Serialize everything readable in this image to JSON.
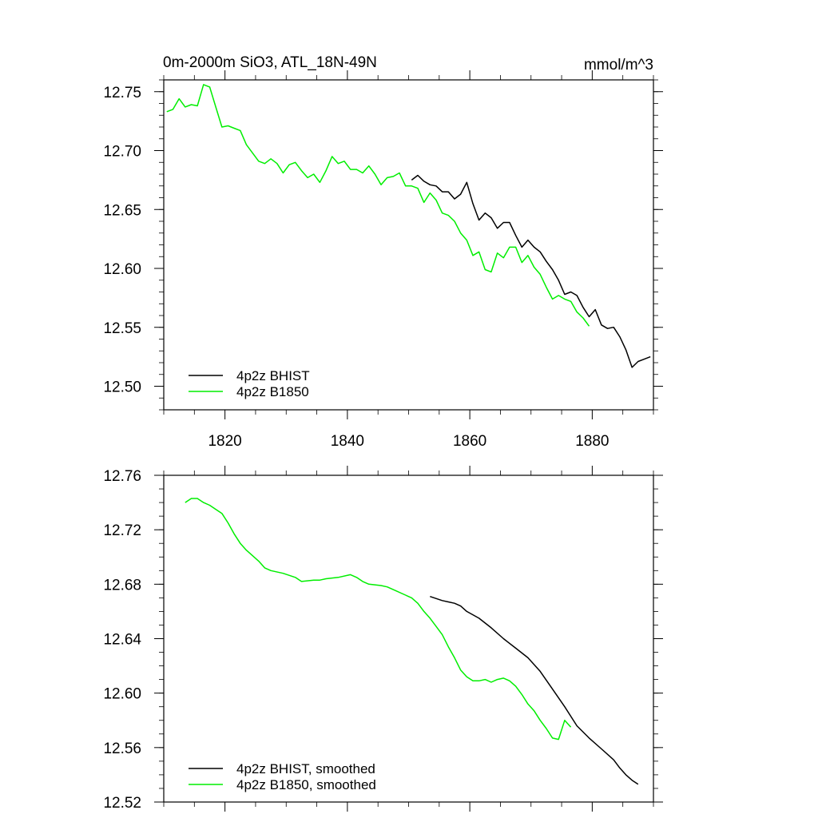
{
  "colors": {
    "bhist": "#000000",
    "b1850": "#00ee00",
    "axis": "#000000",
    "background": "#ffffff"
  },
  "chart_data": [
    {
      "type": "line",
      "title": "0m-2000m SiO3, ATL_18N-49N",
      "units": "mmol/m^3",
      "xlim": [
        1810,
        1890
      ],
      "ylim": [
        12.48,
        12.76
      ],
      "xticks": [
        "1820",
        "1840",
        "1860",
        "1880"
      ],
      "yticks": [
        "12.50",
        "12.55",
        "12.60",
        "12.65",
        "12.70",
        "12.75"
      ],
      "legend_placement": "bottom-left",
      "series": [
        {
          "name": "4p2z BHIST",
          "color": "#000000",
          "x": [
            1850.5,
            1851.5,
            1852.5,
            1853.5,
            1854.5,
            1855.5,
            1856.5,
            1857.5,
            1858.5,
            1859.5,
            1860.5,
            1861.5,
            1862.5,
            1863.5,
            1864.5,
            1865.5,
            1866.5,
            1867.5,
            1868.5,
            1869.5,
            1870.5,
            1871.5,
            1872.5,
            1873.5,
            1874.5,
            1875.5,
            1876.5,
            1877.5,
            1878.5,
            1879.5,
            1880.5,
            1881.5,
            1882.5,
            1883.5,
            1884.5,
            1885.5,
            1886.5,
            1887.5,
            1888.5,
            1889.5
          ],
          "y": [
            12.675,
            12.679,
            12.674,
            12.671,
            12.67,
            12.665,
            12.665,
            12.659,
            12.663,
            12.673,
            12.655,
            12.641,
            12.647,
            12.643,
            12.634,
            12.639,
            12.639,
            12.628,
            12.618,
            12.624,
            12.618,
            12.614,
            12.606,
            12.599,
            12.59,
            12.578,
            12.58,
            12.577,
            12.567,
            12.559,
            12.565,
            12.552,
            12.549,
            12.55,
            12.542,
            12.531,
            12.516,
            12.521,
            12.523,
            12.525
          ]
        },
        {
          "name": "4p2z B1850",
          "color": "#00ee00",
          "x": [
            1810.5,
            1811.5,
            1812.5,
            1813.5,
            1814.5,
            1815.5,
            1816.5,
            1817.5,
            1818.5,
            1819.5,
            1820.5,
            1821.5,
            1822.5,
            1823.5,
            1824.5,
            1825.5,
            1826.5,
            1827.5,
            1828.5,
            1829.5,
            1830.5,
            1831.5,
            1832.5,
            1833.5,
            1834.5,
            1835.5,
            1836.5,
            1837.5,
            1838.5,
            1839.5,
            1840.5,
            1841.5,
            1842.5,
            1843.5,
            1844.5,
            1845.5,
            1846.5,
            1847.5,
            1848.5,
            1849.5,
            1850.5,
            1851.5,
            1852.5,
            1853.5,
            1854.5,
            1855.5,
            1856.5,
            1857.5,
            1858.5,
            1859.5,
            1860.5,
            1861.5,
            1862.5,
            1863.5,
            1864.5,
            1865.5,
            1866.5,
            1867.5,
            1868.5,
            1869.5,
            1870.5,
            1871.5,
            1872.5,
            1873.5,
            1874.5,
            1875.5,
            1876.5,
            1877.5,
            1878.5,
            1879.5
          ],
          "y": [
            12.733,
            12.735,
            12.744,
            12.737,
            12.739,
            12.738,
            12.756,
            12.754,
            12.737,
            12.72,
            12.721,
            12.719,
            12.717,
            12.705,
            12.698,
            12.691,
            12.689,
            12.693,
            12.689,
            12.681,
            12.688,
            12.69,
            12.683,
            12.677,
            12.68,
            12.673,
            12.683,
            12.695,
            12.689,
            12.691,
            12.684,
            12.684,
            12.681,
            12.687,
            12.68,
            12.671,
            12.677,
            12.678,
            12.681,
            12.67,
            12.67,
            12.668,
            12.656,
            12.664,
            12.658,
            12.647,
            12.645,
            12.64,
            12.63,
            12.624,
            12.611,
            12.614,
            12.599,
            12.597,
            12.613,
            12.609,
            12.618,
            12.618,
            12.605,
            12.611,
            12.601,
            12.595,
            12.584,
            12.574,
            12.577,
            12.574,
            12.572,
            12.563,
            12.558,
            12.551
          ]
        }
      ]
    },
    {
      "type": "line",
      "title": "",
      "xlim": [
        1810,
        1890
      ],
      "ylim": [
        12.52,
        12.76
      ],
      "yticks": [
        "12.52",
        "12.56",
        "12.60",
        "12.64",
        "12.68",
        "12.72",
        "12.76"
      ],
      "legend_placement": "bottom-left",
      "series": [
        {
          "name": "4p2z BHIST, smoothed",
          "color": "#000000",
          "x": [
            1853.5,
            1855.5,
            1856.5,
            1857.5,
            1858.5,
            1859.5,
            1861.5,
            1863.5,
            1865.5,
            1867.5,
            1869.5,
            1871.5,
            1873.5,
            1875.5,
            1877.5,
            1879.5,
            1881.5,
            1883.5,
            1884.5,
            1885.5,
            1886.5,
            1887.5
          ],
          "y": [
            12.671,
            12.668,
            12.667,
            12.666,
            12.664,
            12.66,
            12.655,
            12.648,
            12.64,
            12.633,
            12.626,
            12.616,
            12.603,
            12.59,
            12.576,
            12.567,
            12.559,
            12.551,
            12.545,
            12.54,
            12.536,
            12.533
          ]
        },
        {
          "name": "4p2z B1850, smoothed",
          "color": "#00ee00",
          "x": [
            1813.5,
            1814.5,
            1815.5,
            1816.5,
            1817.5,
            1818.5,
            1819.5,
            1820.5,
            1821.5,
            1822.5,
            1823.5,
            1825.5,
            1826.5,
            1827.5,
            1829.5,
            1831.5,
            1832.5,
            1834.5,
            1835.5,
            1836.5,
            1838.5,
            1840.5,
            1841.5,
            1842.5,
            1843.5,
            1845.5,
            1846.5,
            1847.5,
            1849.5,
            1850.5,
            1851.5,
            1852.5,
            1853.5,
            1854.5,
            1855.5,
            1856.5,
            1857.5,
            1858.5,
            1859.5,
            1860.5,
            1861.5,
            1862.5,
            1863.5,
            1864.5,
            1865.5,
            1866.5,
            1867.5,
            1868.5,
            1869.5,
            1870.5,
            1871.5,
            1872.5,
            1873.5,
            1874.5,
            1875.5,
            1876.5
          ],
          "y": [
            12.74,
            12.743,
            12.743,
            12.74,
            12.738,
            12.735,
            12.732,
            12.725,
            12.717,
            12.71,
            12.705,
            12.697,
            12.692,
            12.69,
            12.688,
            12.685,
            12.682,
            12.683,
            12.683,
            12.684,
            12.685,
            12.687,
            12.685,
            12.682,
            12.68,
            12.679,
            12.678,
            12.676,
            12.672,
            12.67,
            12.666,
            12.66,
            12.655,
            12.649,
            12.643,
            12.634,
            12.626,
            12.617,
            12.612,
            12.609,
            12.609,
            12.61,
            12.608,
            12.61,
            12.611,
            12.609,
            12.605,
            12.599,
            12.592,
            12.587,
            12.58,
            12.574,
            12.567,
            12.566,
            12.58,
            12.575
          ]
        }
      ]
    }
  ]
}
